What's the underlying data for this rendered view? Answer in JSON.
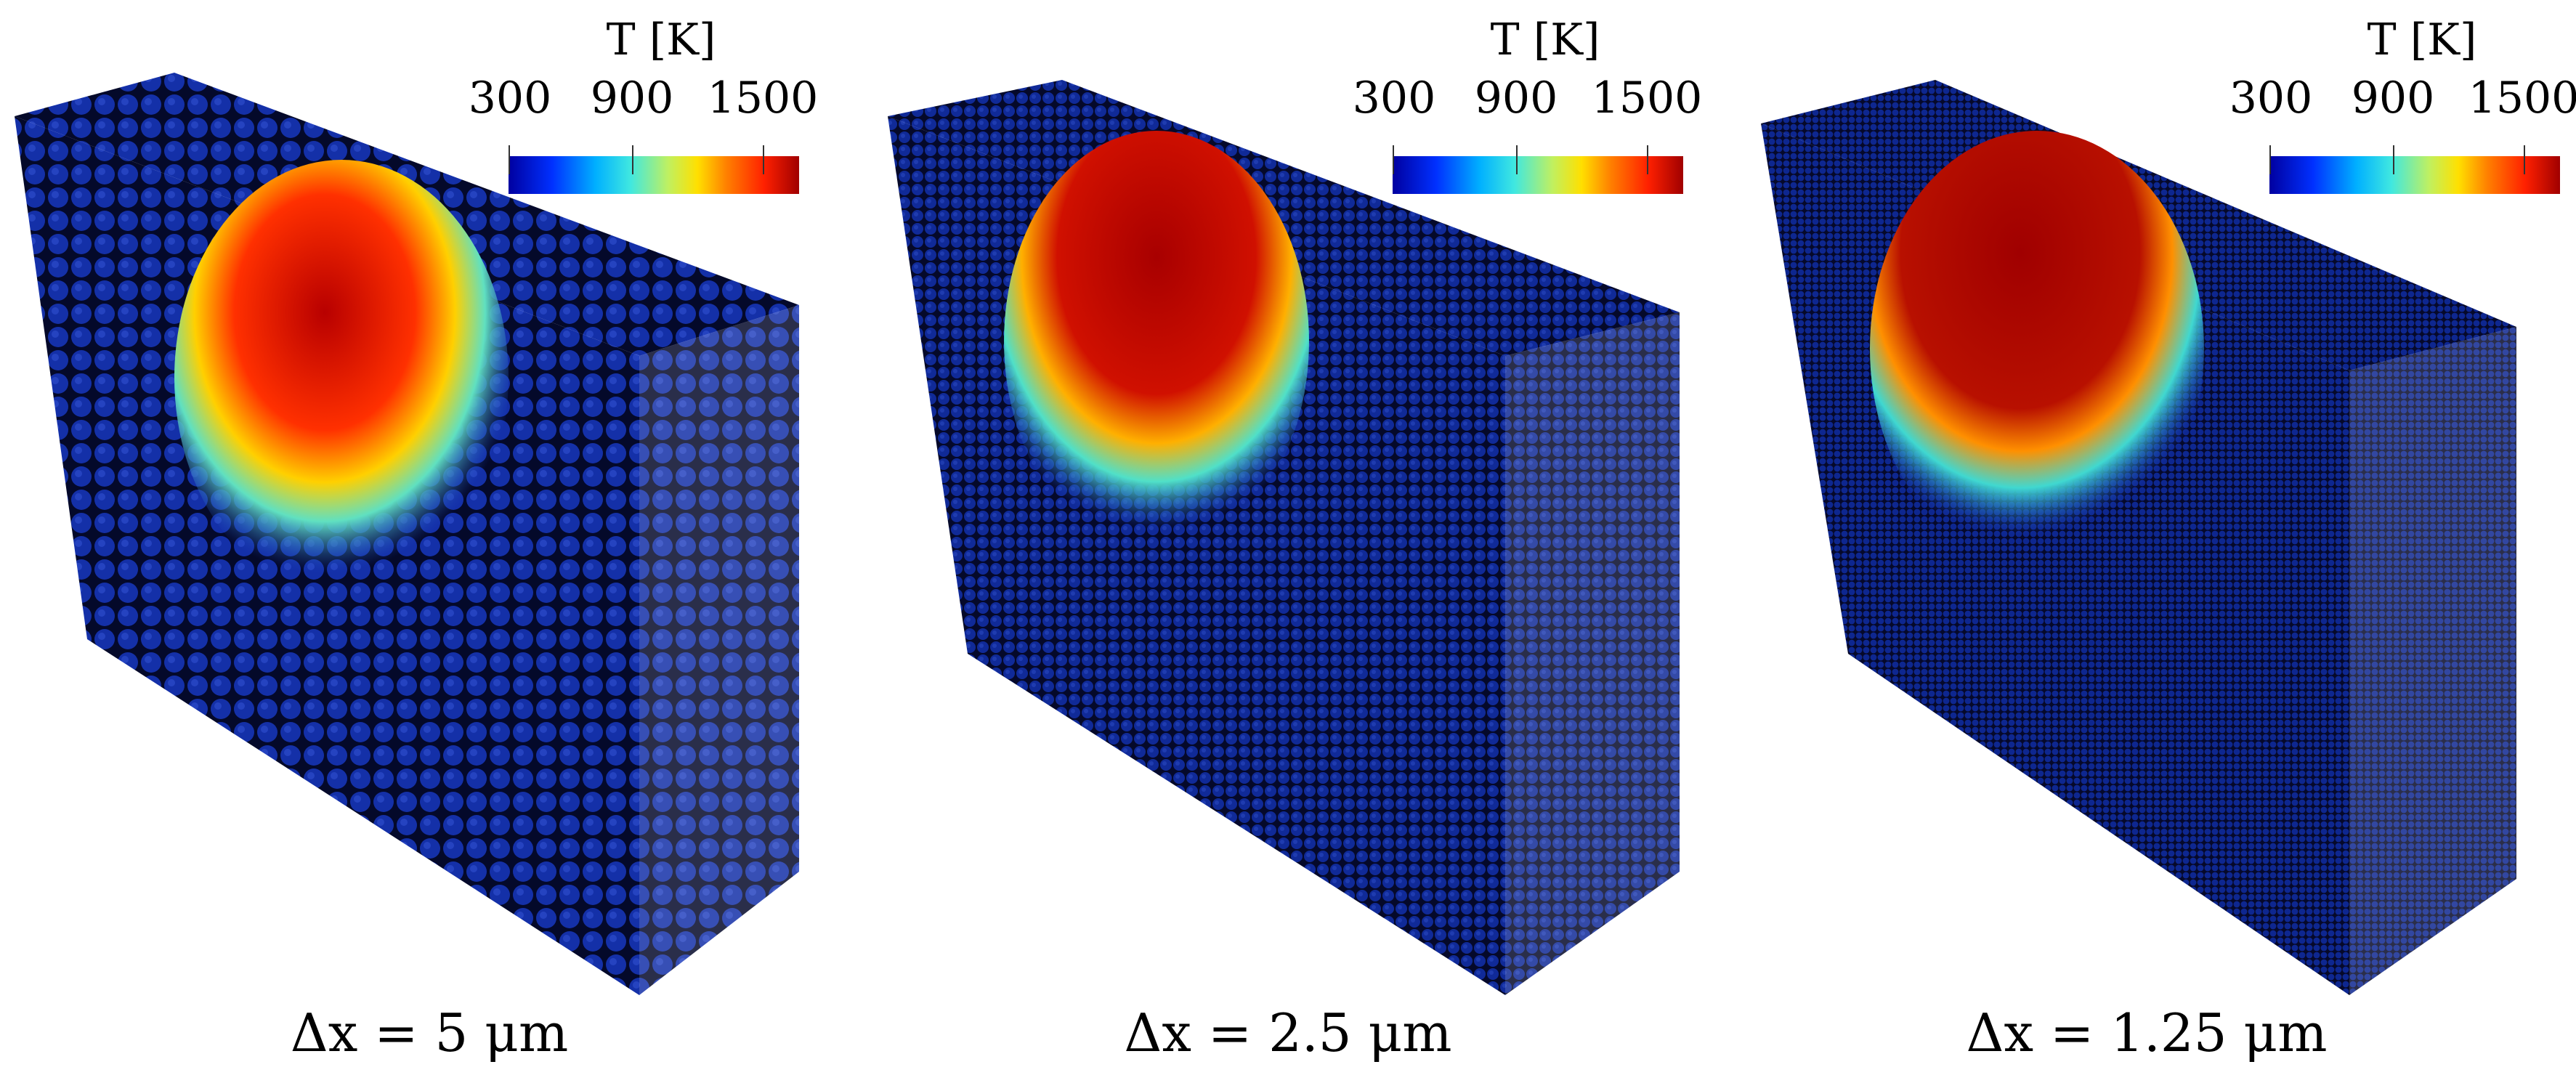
{
  "colorbar": {
    "title": "T [K]",
    "ticks": [
      "300",
      "900",
      "1500"
    ],
    "colors": [
      "#0000a0",
      "#0030ff",
      "#00b0ff",
      "#40e8e0",
      "#c0f060",
      "#ffe000",
      "#ff8000",
      "#ff2000",
      "#a00000"
    ]
  },
  "panels": [
    {
      "caption": "Δx = 5 μm"
    },
    {
      "caption": "Δx = 2.5 μm"
    },
    {
      "caption": "Δx = 1.25 μm"
    }
  ]
}
